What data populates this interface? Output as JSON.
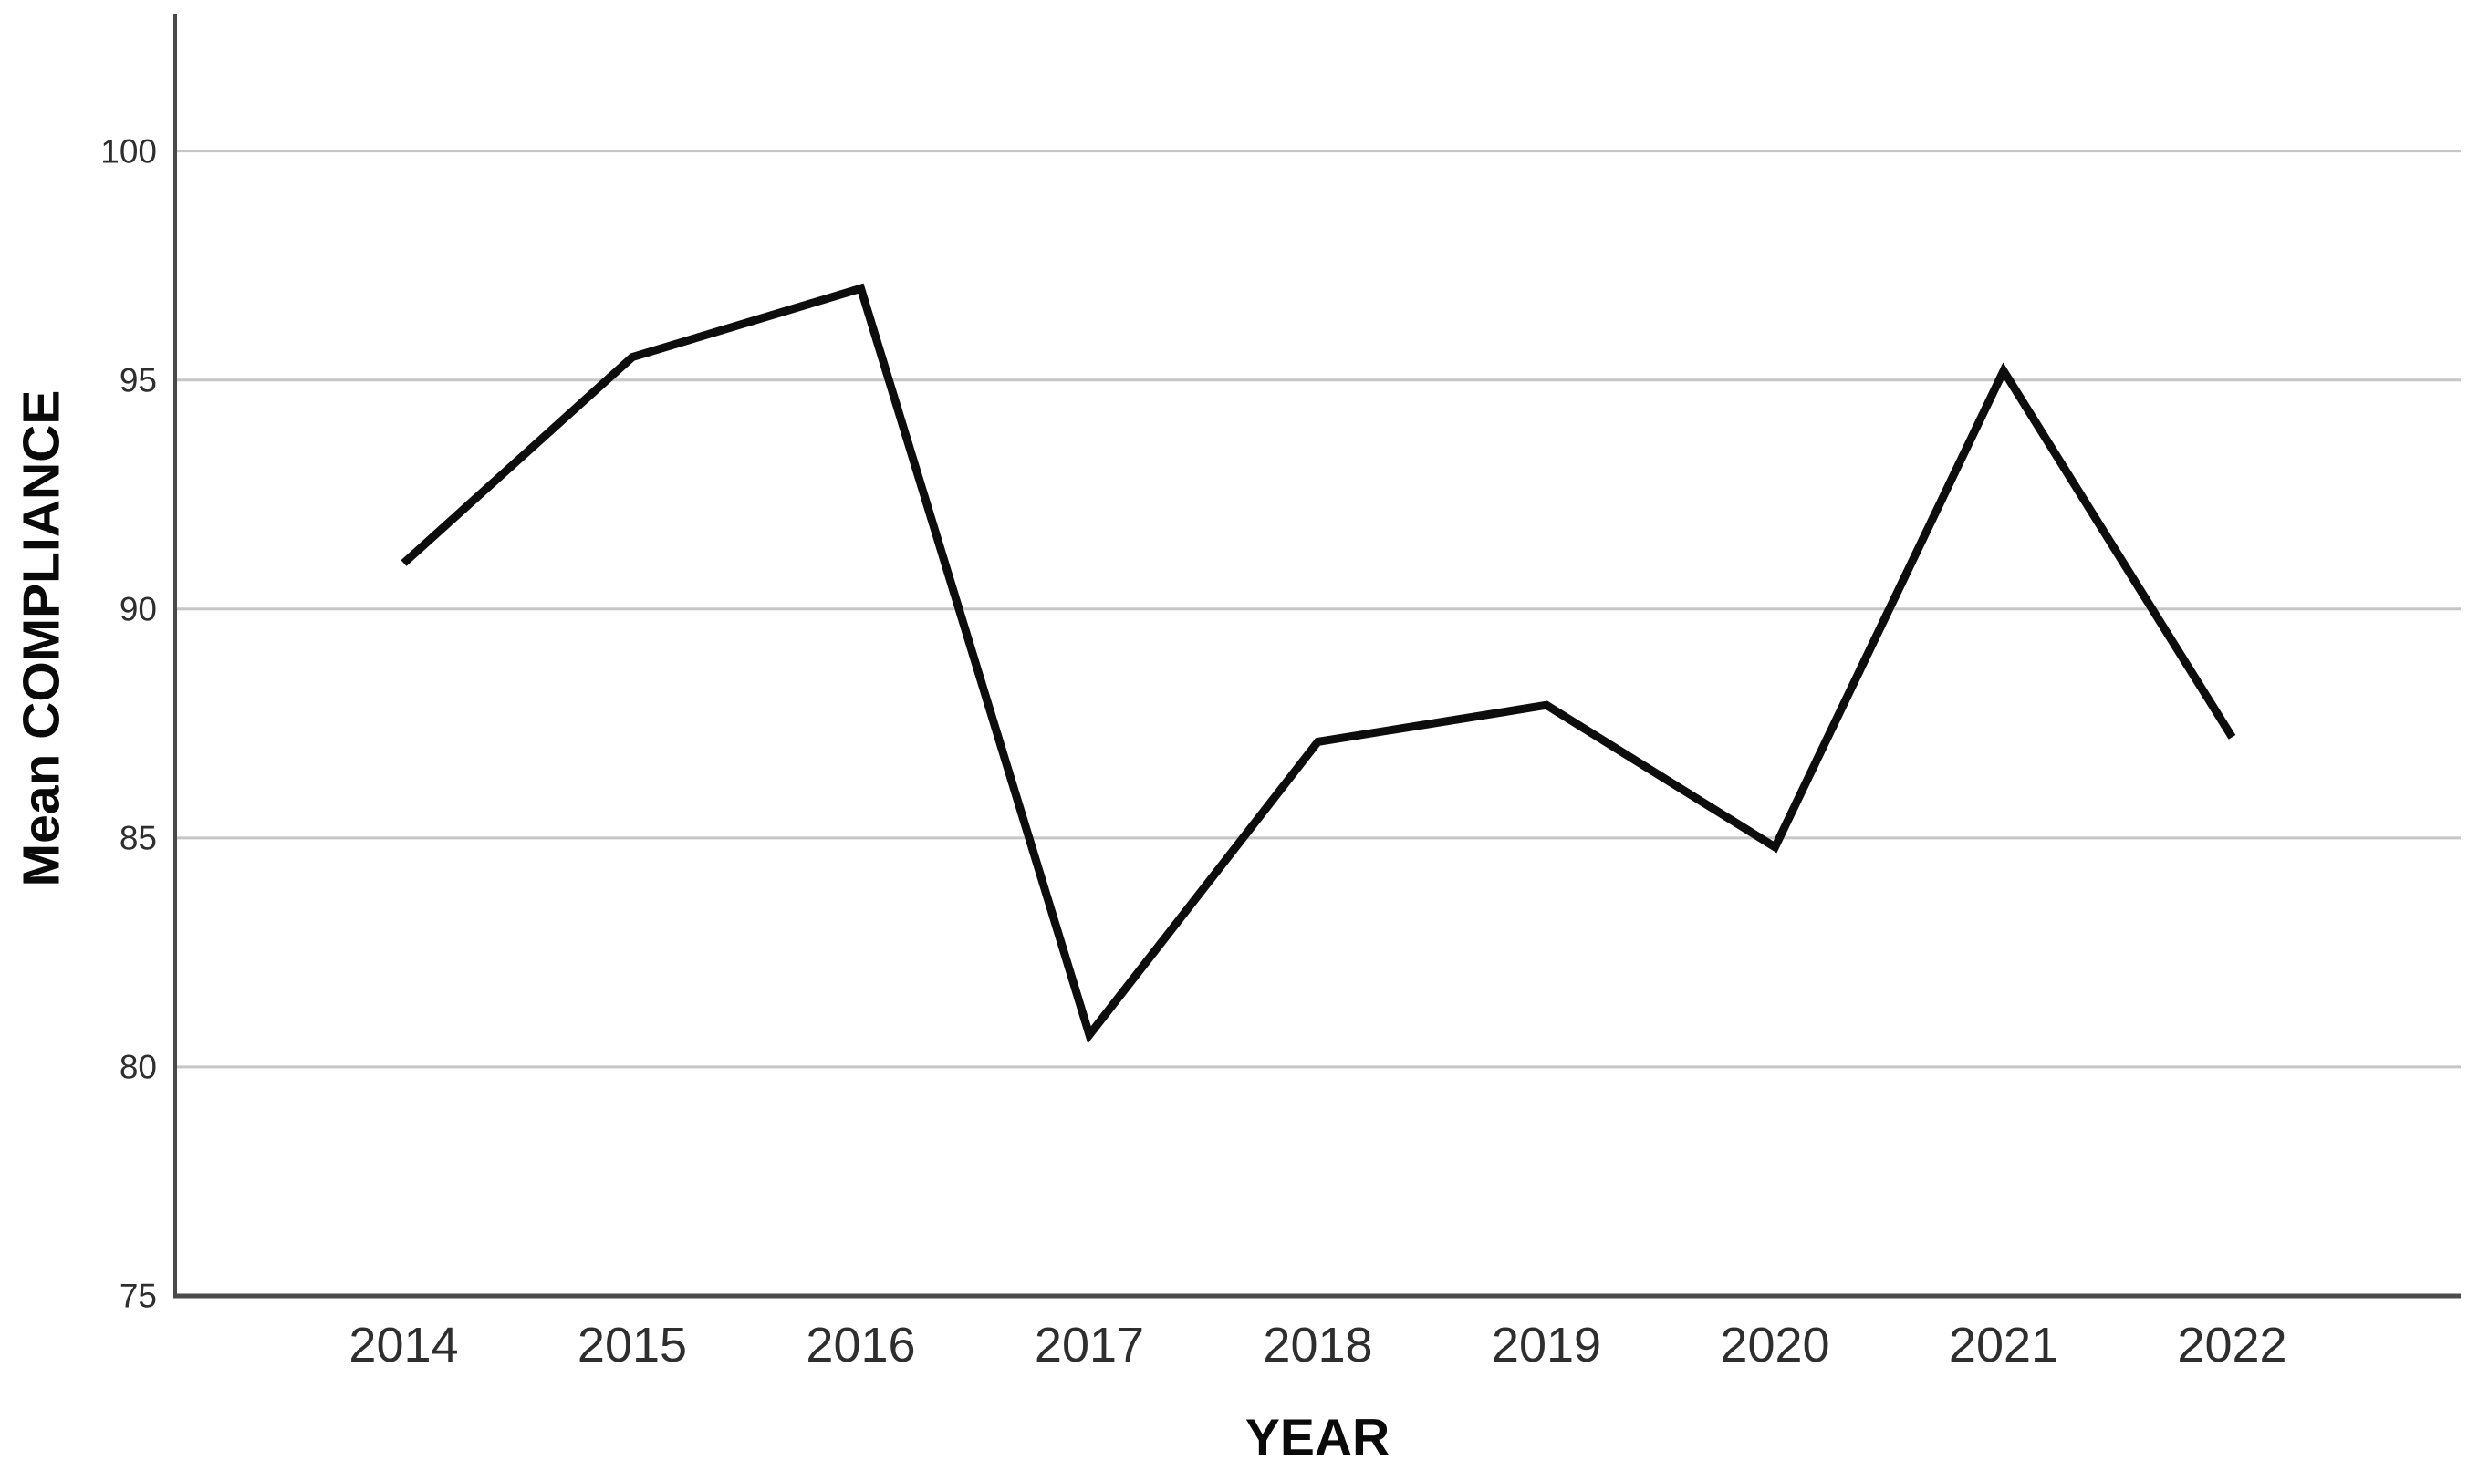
{
  "chart_data": {
    "type": "line",
    "title": "",
    "xlabel": "YEAR",
    "ylabel": "Mean COMPLIANCE",
    "categories": [
      "2014",
      "2015",
      "2016",
      "2017",
      "2018",
      "2019",
      "2020",
      "2021",
      "2022"
    ],
    "values": [
      91.0,
      95.5,
      97.0,
      80.7,
      87.1,
      87.9,
      84.8,
      95.2,
      87.2
    ],
    "series_name": "Mean COMPLIANCE",
    "yticks": [
      75,
      80,
      85,
      90,
      95,
      100
    ],
    "ylim": [
      75,
      103
    ],
    "grid": true,
    "legend": false,
    "colors": {
      "line": "#0d0d0d",
      "gridline": "#c6c6c6",
      "axis": "#4a4a4a",
      "tick_label": "#2e2e2e",
      "title": "#0a0a0a",
      "background": "#ffffff"
    }
  }
}
